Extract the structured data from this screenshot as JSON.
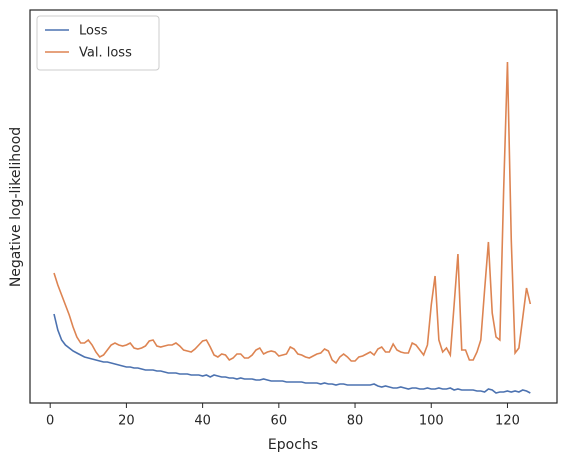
{
  "chart_data": {
    "type": "line",
    "xlabel": "Epochs",
    "ylabel": "Negative log-likelihood",
    "x": [
      1,
      2,
      3,
      4,
      5,
      6,
      7,
      8,
      9,
      10,
      11,
      12,
      13,
      14,
      15,
      16,
      17,
      18,
      19,
      20,
      21,
      22,
      23,
      24,
      25,
      26,
      27,
      28,
      29,
      30,
      31,
      32,
      33,
      34,
      35,
      36,
      37,
      38,
      39,
      40,
      41,
      42,
      43,
      44,
      45,
      46,
      47,
      48,
      49,
      50,
      51,
      52,
      53,
      54,
      55,
      56,
      57,
      58,
      59,
      60,
      61,
      62,
      63,
      64,
      65,
      66,
      67,
      68,
      69,
      70,
      71,
      72,
      73,
      74,
      75,
      76,
      77,
      78,
      79,
      80,
      81,
      82,
      83,
      84,
      85,
      86,
      87,
      88,
      89,
      90,
      91,
      92,
      93,
      94,
      95,
      96,
      97,
      98,
      99,
      100,
      101,
      102,
      103,
      104,
      105,
      106,
      107,
      108,
      109,
      110,
      111,
      112,
      113,
      114,
      115,
      116,
      117,
      118,
      119,
      120,
      121,
      122,
      123,
      124,
      125,
      126
    ],
    "series": [
      {
        "name": "Loss",
        "color": "#4c72b0",
        "values": [
          89,
          73,
          63,
          58,
          55,
          52,
          50,
          48,
          46,
          45,
          44,
          43,
          42,
          41,
          41,
          40,
          39,
          38,
          37,
          36,
          36,
          35,
          35,
          34,
          33,
          33,
          33,
          32,
          32,
          31,
          30,
          30,
          30,
          29,
          29,
          29,
          28,
          28,
          28,
          27,
          28,
          26,
          28,
          27,
          26,
          26,
          25,
          25,
          24,
          25,
          24,
          24,
          24,
          23,
          23,
          24,
          23,
          22,
          22,
          22,
          22,
          21,
          21,
          21,
          21,
          21,
          20,
          20,
          20,
          20,
          19,
          20,
          19,
          19,
          18,
          19,
          19,
          18,
          18,
          18,
          18,
          18,
          18,
          18,
          19,
          17,
          16,
          17,
          16,
          15,
          15,
          16,
          15,
          14,
          15,
          15,
          14,
          14,
          15,
          14,
          14,
          15,
          14,
          14,
          15,
          13,
          14,
          13,
          13,
          13,
          13,
          12,
          12,
          11,
          14,
          13,
          10,
          11,
          11,
          12,
          11,
          12,
          11,
          13,
          12,
          10
        ]
      },
      {
        "name": "Val. loss",
        "color": "#dd8452",
        "values": [
          130,
          118,
          108,
          98,
          88,
          76,
          66,
          60,
          60,
          63,
          58,
          51,
          46,
          48,
          53,
          58,
          60,
          58,
          57,
          58,
          60,
          55,
          54,
          55,
          57,
          62,
          63,
          57,
          56,
          57,
          58,
          58,
          60,
          57,
          53,
          52,
          51,
          54,
          58,
          62,
          63,
          56,
          48,
          46,
          49,
          48,
          43,
          45,
          49,
          49,
          45,
          45,
          48,
          53,
          55,
          49,
          51,
          52,
          51,
          47,
          48,
          49,
          56,
          54,
          49,
          48,
          46,
          45,
          47,
          49,
          50,
          54,
          52,
          43,
          40,
          46,
          49,
          46,
          42,
          42,
          46,
          47,
          49,
          51,
          48,
          54,
          56,
          51,
          51,
          59,
          53,
          51,
          50,
          50,
          60,
          58,
          53,
          48,
          58,
          98,
          127,
          63,
          51,
          55,
          48,
          98,
          149,
          53,
          53,
          43,
          43,
          51,
          63,
          113,
          161,
          90,
          66,
          63,
          213,
          341,
          163,
          50,
          55,
          85,
          115,
          99
        ]
      }
    ],
    "xlim": [
      -5.3,
      133
    ],
    "ylim": [
      0,
      393
    ],
    "xticks": [
      0,
      20,
      40,
      60,
      80,
      100,
      120
    ],
    "legend": "upper left"
  }
}
